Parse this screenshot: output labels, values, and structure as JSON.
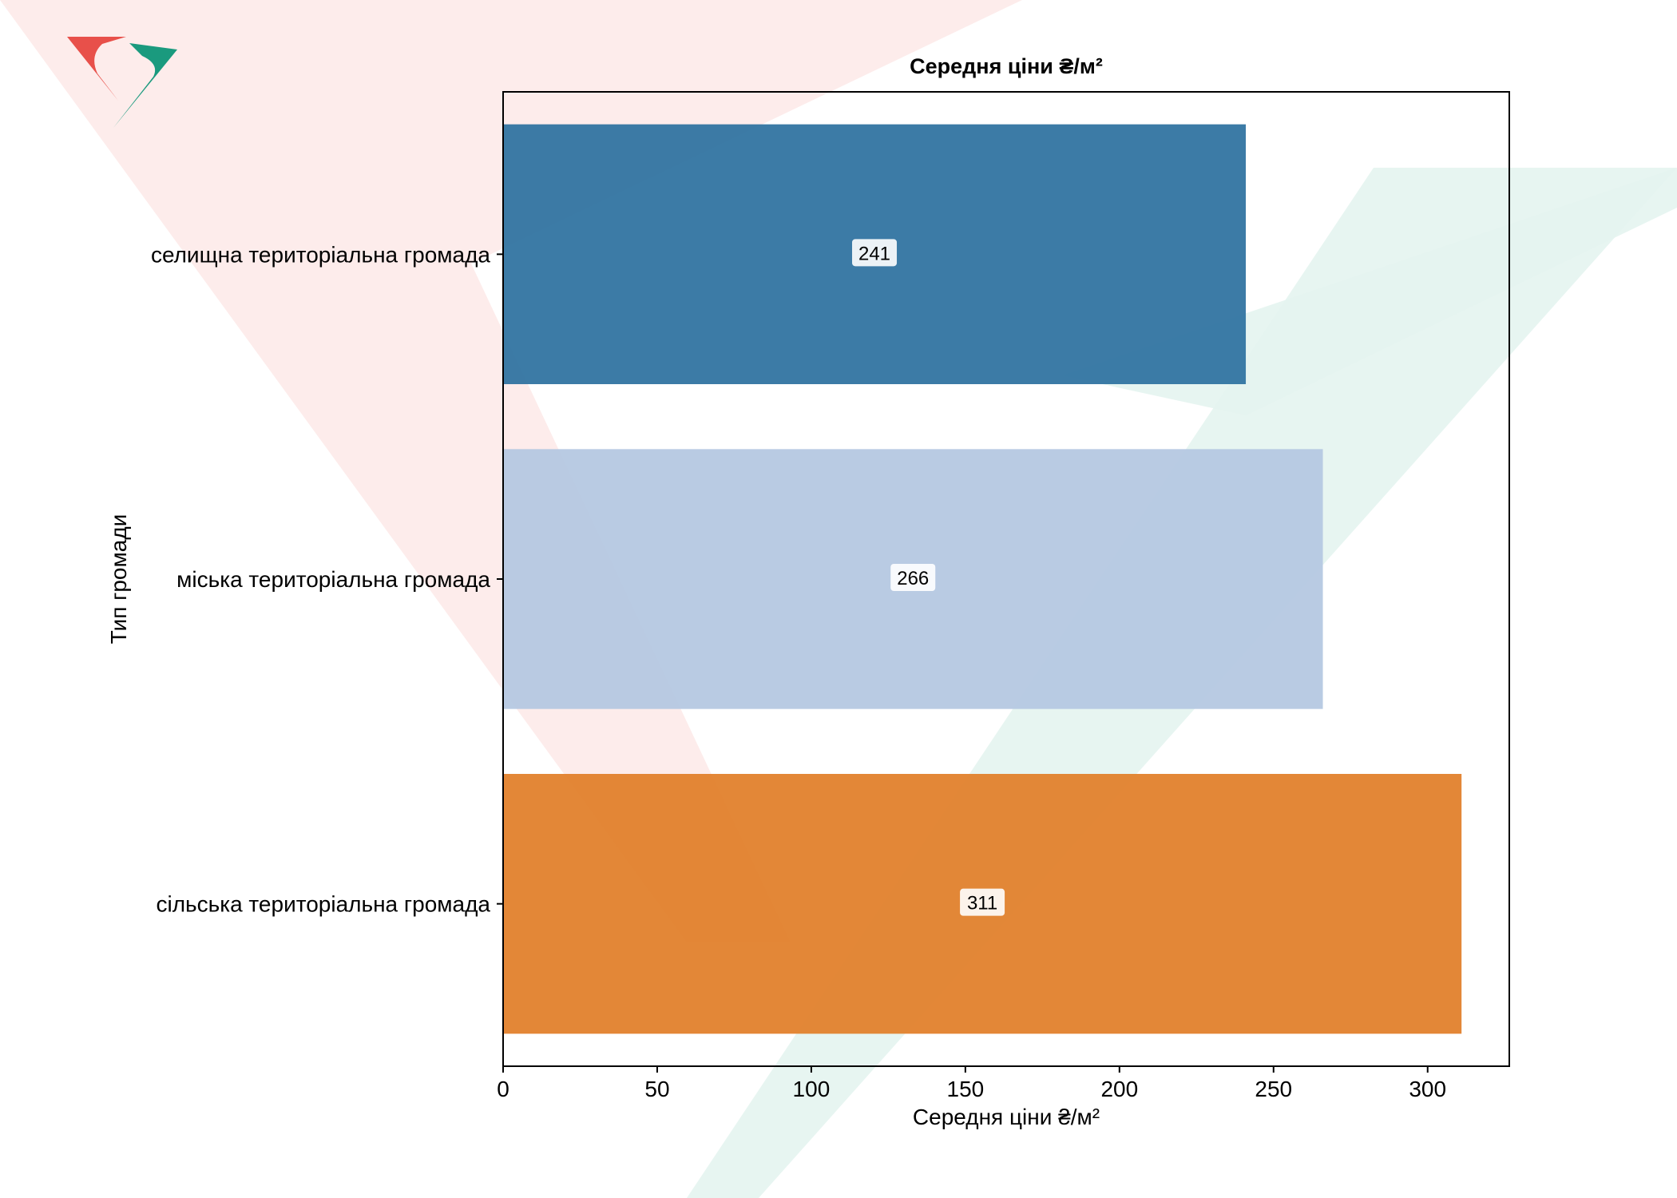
{
  "chart_data": {
    "type": "bar",
    "orientation": "horizontal",
    "title": "Середня ціни ₴/м²",
    "xlabel": "Середня ціни ₴/м²",
    "ylabel": "Тип громади",
    "categories": [
      "селищна територіальна громада",
      "міська територіальна громада",
      "сільська територіальна громада"
    ],
    "values": [
      241,
      266,
      311
    ],
    "data_labels": [
      "241",
      "266",
      "311"
    ],
    "colors": [
      "#3274a1",
      "#b5c8e2",
      "#e1812c"
    ],
    "xlim": [
      0,
      326.5
    ],
    "xticks": [
      0,
      50,
      100,
      150,
      200,
      250,
      300
    ],
    "xtick_labels": [
      "0",
      "50",
      "100",
      "150",
      "200",
      "250",
      "300"
    ],
    "grid": false,
    "legend": "none"
  },
  "watermark": {
    "colors": [
      "#e8504a",
      "#1a9a7e"
    ]
  }
}
